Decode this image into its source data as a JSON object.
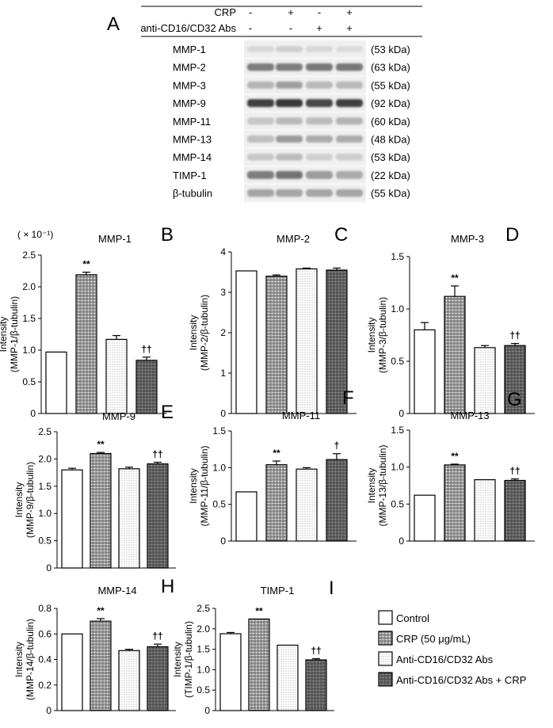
{
  "colors": {
    "control": "#ffffff",
    "crp": "#b8b8b8",
    "abs": "#e2e2e2",
    "abs_crp": "#6e6e6e",
    "axis": "#000000"
  },
  "blot": {
    "panel_label": "A",
    "conditions": [
      {
        "label": "CRP",
        "values": [
          "-",
          "+",
          "-",
          "+"
        ]
      },
      {
        "label": "anti-CD16/CD32 Abs",
        "values": [
          "-",
          "-",
          "+",
          "+"
        ]
      }
    ],
    "rows": [
      {
        "name": "MMP-1",
        "kda": "(53 kDa)",
        "intensity": [
          0.1,
          0.14,
          0.1,
          0.08
        ],
        "thickness": 0.35
      },
      {
        "name": "MMP-2",
        "kda": "(63 kDa)",
        "intensity": [
          0.55,
          0.55,
          0.58,
          0.58
        ],
        "thickness": 0.55
      },
      {
        "name": "MMP-3",
        "kda": "(55 kDa)",
        "intensity": [
          0.28,
          0.38,
          0.25,
          0.25
        ],
        "thickness": 0.5
      },
      {
        "name": "MMP-9",
        "kda": "(92 kDa)",
        "intensity": [
          0.85,
          0.9,
          0.82,
          0.85
        ],
        "thickness": 0.6
      },
      {
        "name": "MMP-11",
        "kda": "(60 kDa)",
        "intensity": [
          0.18,
          0.25,
          0.24,
          0.28
        ],
        "thickness": 0.5
      },
      {
        "name": "MMP-13",
        "kda": "(48 kDa)",
        "intensity": [
          0.22,
          0.4,
          0.32,
          0.32
        ],
        "thickness": 0.5
      },
      {
        "name": "MMP-14",
        "kda": "(53 kDa)",
        "intensity": [
          0.18,
          0.24,
          0.14,
          0.15
        ],
        "thickness": 0.45
      },
      {
        "name": "TIMP-1",
        "kda": "(22 kDa)",
        "intensity": [
          0.55,
          0.6,
          0.4,
          0.32
        ],
        "thickness": 0.6
      },
      {
        "name": "β-tubulin",
        "kda": "(55 kDa)",
        "intensity": [
          0.35,
          0.35,
          0.35,
          0.35
        ],
        "thickness": 0.55
      }
    ]
  },
  "legend": [
    {
      "key": "control",
      "label": "Control"
    },
    {
      "key": "crp",
      "label": "CRP (50 μg/mL)"
    },
    {
      "key": "abs",
      "label": "Anti-CD16/CD32 Abs"
    },
    {
      "key": "abs_crp",
      "label": "Anti-CD16/CD32 Abs + CRP"
    }
  ],
  "chart_data": [
    {
      "panel": "B",
      "type": "bar",
      "title": "MMP-1",
      "scale_note": "( × 10⁻¹)",
      "ylabel": [
        "Intensity",
        "(MMP-1/β-tubulin)"
      ],
      "ylim": [
        0,
        2.5
      ],
      "yticks": [
        "0",
        "0.5",
        "1.0",
        "1.5",
        "2.0",
        "2.5"
      ],
      "categories": [
        "Control",
        "CRP (50 μg/mL)",
        "Anti-CD16/CD32 Abs",
        "Anti-CD16/CD32 Abs + CRP"
      ],
      "values": [
        0.97,
        2.19,
        1.17,
        0.84
      ],
      "errors": [
        0.0,
        0.04,
        0.06,
        0.05
      ],
      "annotations": [
        "",
        "**",
        "",
        "††"
      ]
    },
    {
      "panel": "C",
      "type": "bar",
      "title": "MMP-2",
      "scale_note": "",
      "ylabel": [
        "Intensity",
        "(MMP-2/β-tubulin)"
      ],
      "ylim": [
        0,
        4
      ],
      "yticks": [
        "0",
        "1",
        "2",
        "3",
        "4"
      ],
      "categories": [
        "Control",
        "CRP (50 μg/mL)",
        "Anti-CD16/CD32 Abs",
        "Anti-CD16/CD32 Abs + CRP"
      ],
      "values": [
        3.53,
        3.4,
        3.58,
        3.55
      ],
      "errors": [
        0.0,
        0.03,
        0.02,
        0.05
      ],
      "annotations": [
        "",
        "",
        "",
        ""
      ]
    },
    {
      "panel": "D",
      "type": "bar",
      "title": "MMP-3",
      "scale_note": "",
      "ylabel": [
        "Intensity",
        "(MMP-3/β-tubulin)"
      ],
      "ylim": [
        0,
        1.5
      ],
      "yticks": [
        "0",
        "0.5",
        "1.0",
        "1.5"
      ],
      "categories": [
        "Control",
        "CRP (50 μg/mL)",
        "Anti-CD16/CD32 Abs",
        "Anti-CD16/CD32 Abs + CRP"
      ],
      "values": [
        0.8,
        1.12,
        0.63,
        0.65
      ],
      "errors": [
        0.07,
        0.1,
        0.02,
        0.02
      ],
      "annotations": [
        "",
        "**",
        "",
        "††"
      ]
    },
    {
      "panel": "E",
      "type": "bar",
      "title": "MMP-9",
      "scale_note": "",
      "ylabel": [
        "Intensity",
        "(MMP-9/β-tubulin)"
      ],
      "ylim": [
        0,
        2.5
      ],
      "yticks": [
        "0",
        "0.5",
        "1.0",
        "1.5",
        "2.0",
        "2.5"
      ],
      "categories": [
        "Control",
        "CRP (50 μg/mL)",
        "Anti-CD16/CD32 Abs",
        "Anti-CD16/CD32 Abs + CRP"
      ],
      "values": [
        1.8,
        2.1,
        1.82,
        1.91
      ],
      "errors": [
        0.03,
        0.02,
        0.03,
        0.03
      ],
      "annotations": [
        "",
        "**",
        "",
        "††"
      ]
    },
    {
      "panel": "F",
      "type": "bar",
      "title": "MMP-11",
      "scale_note": "",
      "ylabel": [
        "Intensity",
        "(MMP-11/β-tubulin)"
      ],
      "ylim": [
        0,
        1.5
      ],
      "yticks": [
        "0",
        "0.5",
        "1.0",
        "1.5"
      ],
      "categories": [
        "Control",
        "CRP (50 μg/mL)",
        "Anti-CD16/CD32 Abs",
        "Anti-CD16/CD32 Abs + CRP"
      ],
      "values": [
        0.67,
        1.04,
        0.98,
        1.11
      ],
      "errors": [
        0.0,
        0.05,
        0.02,
        0.08
      ],
      "annotations": [
        "",
        "**",
        "",
        "†"
      ]
    },
    {
      "panel": "G",
      "type": "bar",
      "title": "MMP-13",
      "scale_note": "",
      "ylabel": [
        "Intensity",
        "(MMP-13/β-tubulin)"
      ],
      "ylim": [
        0,
        1.5
      ],
      "yticks": [
        "0",
        "0.5",
        "1.0",
        "1.5"
      ],
      "categories": [
        "Control",
        "CRP (50 μg/mL)",
        "Anti-CD16/CD32 Abs",
        "Anti-CD16/CD32 Abs + CRP"
      ],
      "values": [
        0.62,
        1.03,
        0.83,
        0.82
      ],
      "errors": [
        0.0,
        0.01,
        0.0,
        0.02
      ],
      "annotations": [
        "",
        "**",
        "",
        "††"
      ]
    },
    {
      "panel": "H",
      "type": "bar",
      "title": "MMP-14",
      "scale_note": "",
      "ylabel": [
        "Intensity",
        "(MMP-14/β-tubulin)"
      ],
      "ylim": [
        0,
        0.8
      ],
      "yticks": [
        "0",
        "0.2",
        "0.4",
        "0.6",
        "0.8"
      ],
      "categories": [
        "Control",
        "CRP (50 μg/mL)",
        "Anti-CD16/CD32 Abs",
        "Anti-CD16/CD32 Abs + CRP"
      ],
      "values": [
        0.6,
        0.7,
        0.47,
        0.5
      ],
      "errors": [
        0.0,
        0.02,
        0.01,
        0.02
      ],
      "annotations": [
        "",
        "**",
        "",
        "††"
      ]
    },
    {
      "panel": "I",
      "type": "bar",
      "title": "TIMP-1",
      "scale_note": "",
      "ylabel": [
        "Intensity",
        "(TIMP-1/β-tubulin)"
      ],
      "ylim": [
        0,
        2.5
      ],
      "yticks": [
        "0",
        "0.5",
        "1.0",
        "1.5",
        "2.0",
        "2.5"
      ],
      "categories": [
        "Control",
        "CRP (50 μg/mL)",
        "Anti-CD16/CD32 Abs",
        "Anti-CD16/CD32 Abs + CRP"
      ],
      "values": [
        1.88,
        2.24,
        1.6,
        1.24
      ],
      "errors": [
        0.03,
        0.0,
        0.0,
        0.03
      ],
      "annotations": [
        "",
        "**",
        "",
        "††"
      ]
    }
  ]
}
